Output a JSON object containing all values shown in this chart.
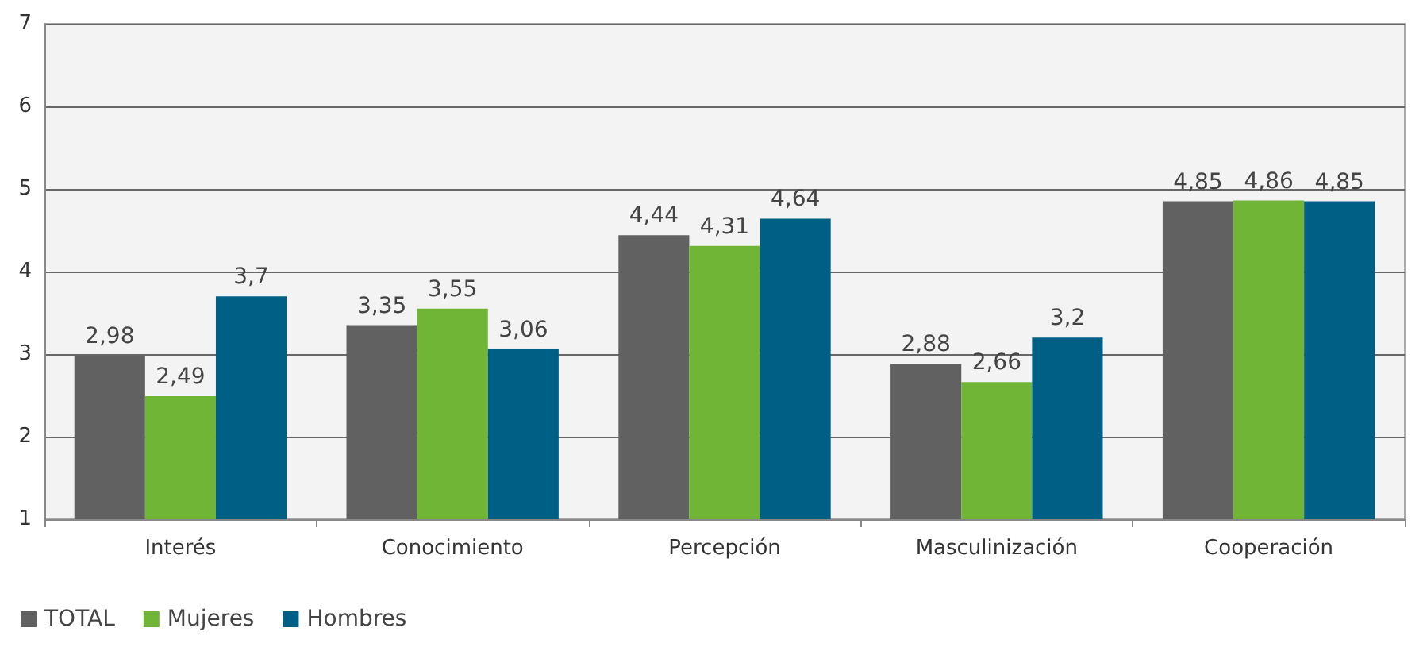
{
  "chart_data": {
    "type": "bar",
    "categories": [
      "Interés",
      "Conocimiento",
      "Percepción",
      "Masculinización",
      "Cooperación"
    ],
    "series": [
      {
        "name": "TOTAL",
        "color": "#616161",
        "values": [
          2.98,
          3.35,
          4.44,
          2.88,
          4.85
        ],
        "value_labels": [
          "2,98",
          "3,35",
          "4,44",
          "2,88",
          "4,85"
        ]
      },
      {
        "name": "Mujeres",
        "color": "#70b535",
        "values": [
          2.49,
          3.55,
          4.31,
          2.66,
          4.86
        ],
        "value_labels": [
          "2,49",
          "3,55",
          "4,31",
          "2,66",
          "4,86"
        ]
      },
      {
        "name": "Hombres",
        "color": "#005f84",
        "values": [
          3.7,
          3.06,
          4.64,
          3.2,
          4.85
        ],
        "value_labels": [
          "3,7",
          "3,06",
          "4,64",
          "3,2",
          "4,85"
        ]
      }
    ],
    "ylim": [
      1,
      7
    ],
    "yticks": [
      1,
      2,
      3,
      4,
      5,
      6,
      7
    ],
    "grid": "y",
    "legend": "bottom left"
  }
}
